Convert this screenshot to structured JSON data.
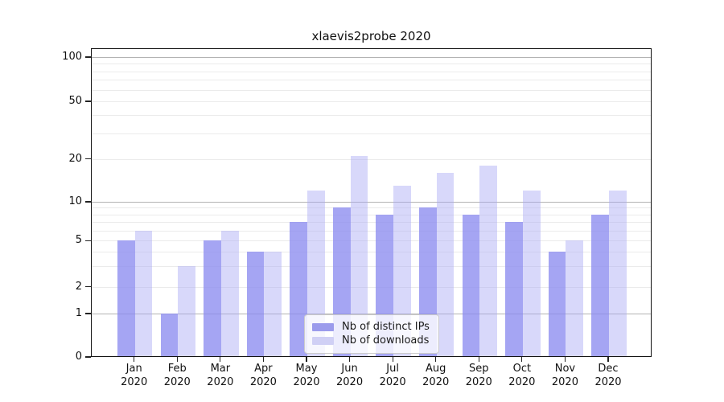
{
  "figure": {
    "title": "xlaevis2probe 2020"
  },
  "chart_data": {
    "type": "bar",
    "title": "xlaevis2probe 2020",
    "categories": [
      "Jan",
      "Feb",
      "Mar",
      "Apr",
      "May",
      "Jun",
      "Jul",
      "Aug",
      "Sep",
      "Oct",
      "Nov",
      "Dec"
    ],
    "x_year_label": "2020",
    "series": [
      {
        "name": "Nb of distinct IPs",
        "values": [
          5,
          1,
          5,
          4,
          7,
          9,
          8,
          9,
          8,
          7,
          4,
          8
        ],
        "legend_color": "#9b9bec",
        "bar_fill": "rgba(140,140,240,0.78)"
      },
      {
        "name": "Nb of downloads",
        "values": [
          6,
          3,
          6,
          4,
          12,
          21,
          13,
          16,
          18,
          12,
          5,
          12
        ],
        "legend_color": "#d0d0f5",
        "bar_fill": "rgba(168,168,244,0.45)"
      }
    ],
    "y_ticks": [
      0,
      1,
      2,
      5,
      10,
      20,
      50,
      100
    ],
    "ylim": [
      0,
      115
    ],
    "yscale": "symlog",
    "grid": "horizontal major+minor",
    "legend_position": "lower center",
    "axis_color": "#111111",
    "major_grid_color": "#b3b3b3",
    "minor_grid_color": "#ebebeb"
  }
}
